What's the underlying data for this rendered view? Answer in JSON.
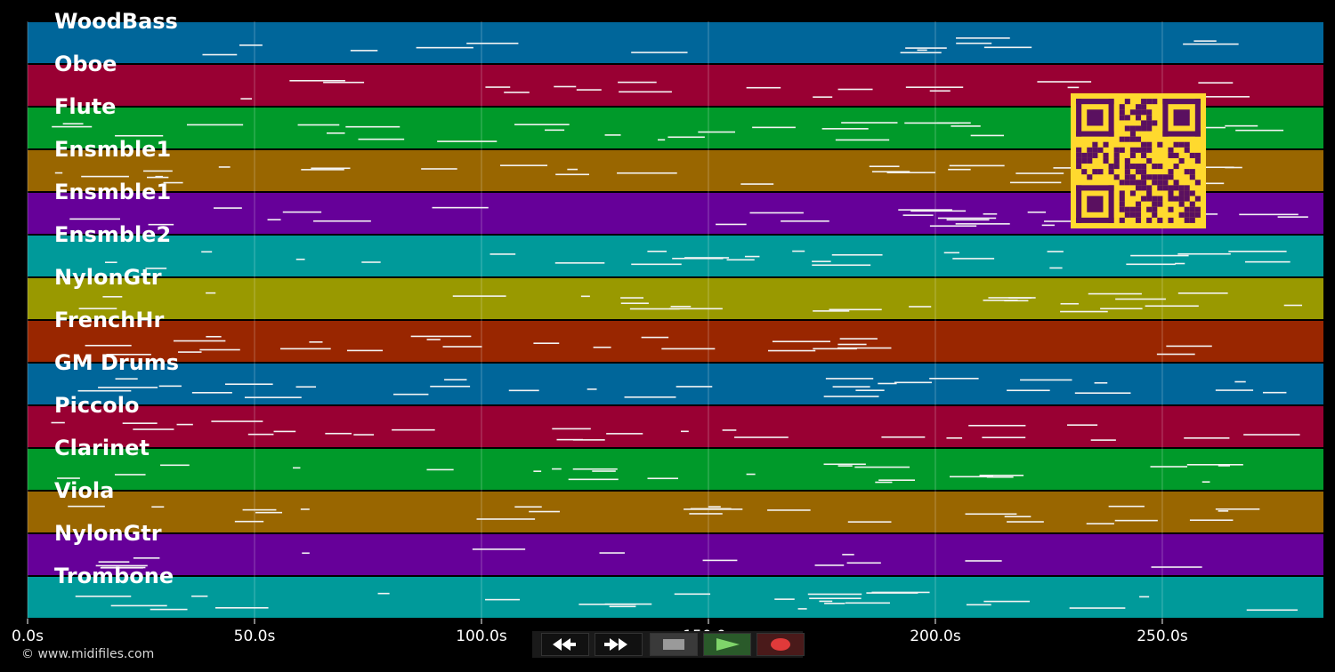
{
  "tracks": [
    {
      "name": "WoodBass",
      "color": "#00669a"
    },
    {
      "name": "Oboe",
      "color": "#990033"
    },
    {
      "name": "Flute",
      "color": "#009a2a"
    },
    {
      "name": "Ensmble1",
      "color": "#996600"
    },
    {
      "name": "Ensmble1",
      "color": "#660099"
    },
    {
      "name": "Ensmble2",
      "color": "#009a9a"
    },
    {
      "name": "NylonGtr",
      "color": "#999900"
    },
    {
      "name": "FrenchHr",
      "color": "#992600"
    },
    {
      "name": "GM Drums",
      "color": "#00669a"
    },
    {
      "name": "Piccolo",
      "color": "#990033"
    },
    {
      "name": "Clarinet",
      "color": "#009a2a"
    },
    {
      "name": "Viola",
      "color": "#996600"
    },
    {
      "name": "NylonGtr",
      "color": "#660099"
    },
    {
      "name": "Trombone",
      "color": "#009a9a"
    }
  ],
  "time_axis": {
    "ticks": [
      "0.0s",
      "50.0s",
      "100.0s",
      "150.0s",
      "200.0s",
      "250.0s"
    ],
    "tick_values": [
      0,
      50,
      100,
      150,
      200,
      250
    ],
    "max_seconds": 285.5
  },
  "copyright": "© www.midifiles.com",
  "transport": {
    "buttons": [
      {
        "name": "rewind-button",
        "icon": "rewind-icon"
      },
      {
        "name": "fast-forward-button",
        "icon": "fast-forward-icon"
      },
      {
        "name": "stop-button",
        "icon": "stop-icon"
      },
      {
        "name": "play-button",
        "icon": "play-icon"
      },
      {
        "name": "record-button",
        "icon": "record-icon"
      }
    ]
  },
  "qr_code": {
    "icon": "qr-code-icon",
    "fg": "#5a1060",
    "bg": "#ffd92e"
  }
}
